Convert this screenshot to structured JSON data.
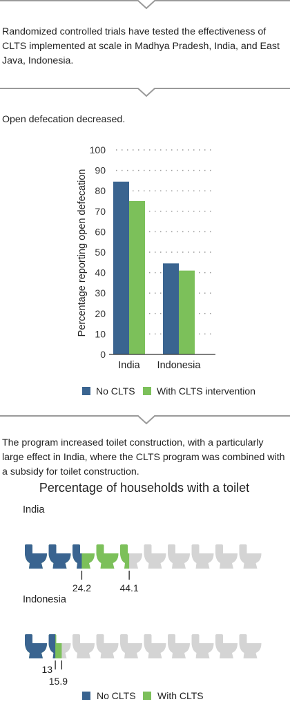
{
  "intro_text": "Randomized controlled trials have tested the effectiveness of CLTS implemented at scale in Madhya Pradesh, India, and East Java, Indonesia.",
  "section1_title": "Open defecation decreased.",
  "section2_text": "The program increased toilet construction, with a particularly large effect in India, where the CLTS program was combined with a subsidy for toilet construction.",
  "colors": {
    "no_clts": "#3a6490",
    "with_clts": "#7cc05a",
    "empty": "#d4d4d4",
    "divider": "#9a9a9a"
  },
  "chart_data": [
    {
      "type": "bar",
      "title": "",
      "categories": [
        "India",
        "Indonesia"
      ],
      "series": [
        {
          "name": "No CLTS",
          "values": [
            84.5,
            44.5
          ]
        },
        {
          "name": "With CLTS intervention",
          "values": [
            75,
            41
          ]
        }
      ],
      "xlabel": "",
      "ylabel": "Percentage reporting open defecation",
      "ylim": [
        0,
        100
      ],
      "yticks": [
        0,
        10,
        20,
        30,
        40,
        50,
        60,
        70,
        80,
        90,
        100
      ],
      "grid": true,
      "legend": "bottom"
    },
    {
      "type": "pictogram",
      "title": "Percentage of households with a toilet",
      "icon": "toilet-icon",
      "icons_per_row": 10,
      "groups": [
        {
          "name": "India",
          "no_clts": 24.2,
          "with_clts": 44.1,
          "labels": [
            "24.2",
            "44.1"
          ]
        },
        {
          "name": "Indonesia",
          "no_clts": 13,
          "with_clts": 15.9,
          "labels": [
            "13",
            "15.9"
          ]
        }
      ],
      "legend": [
        "No CLTS",
        "With CLTS"
      ]
    }
  ]
}
